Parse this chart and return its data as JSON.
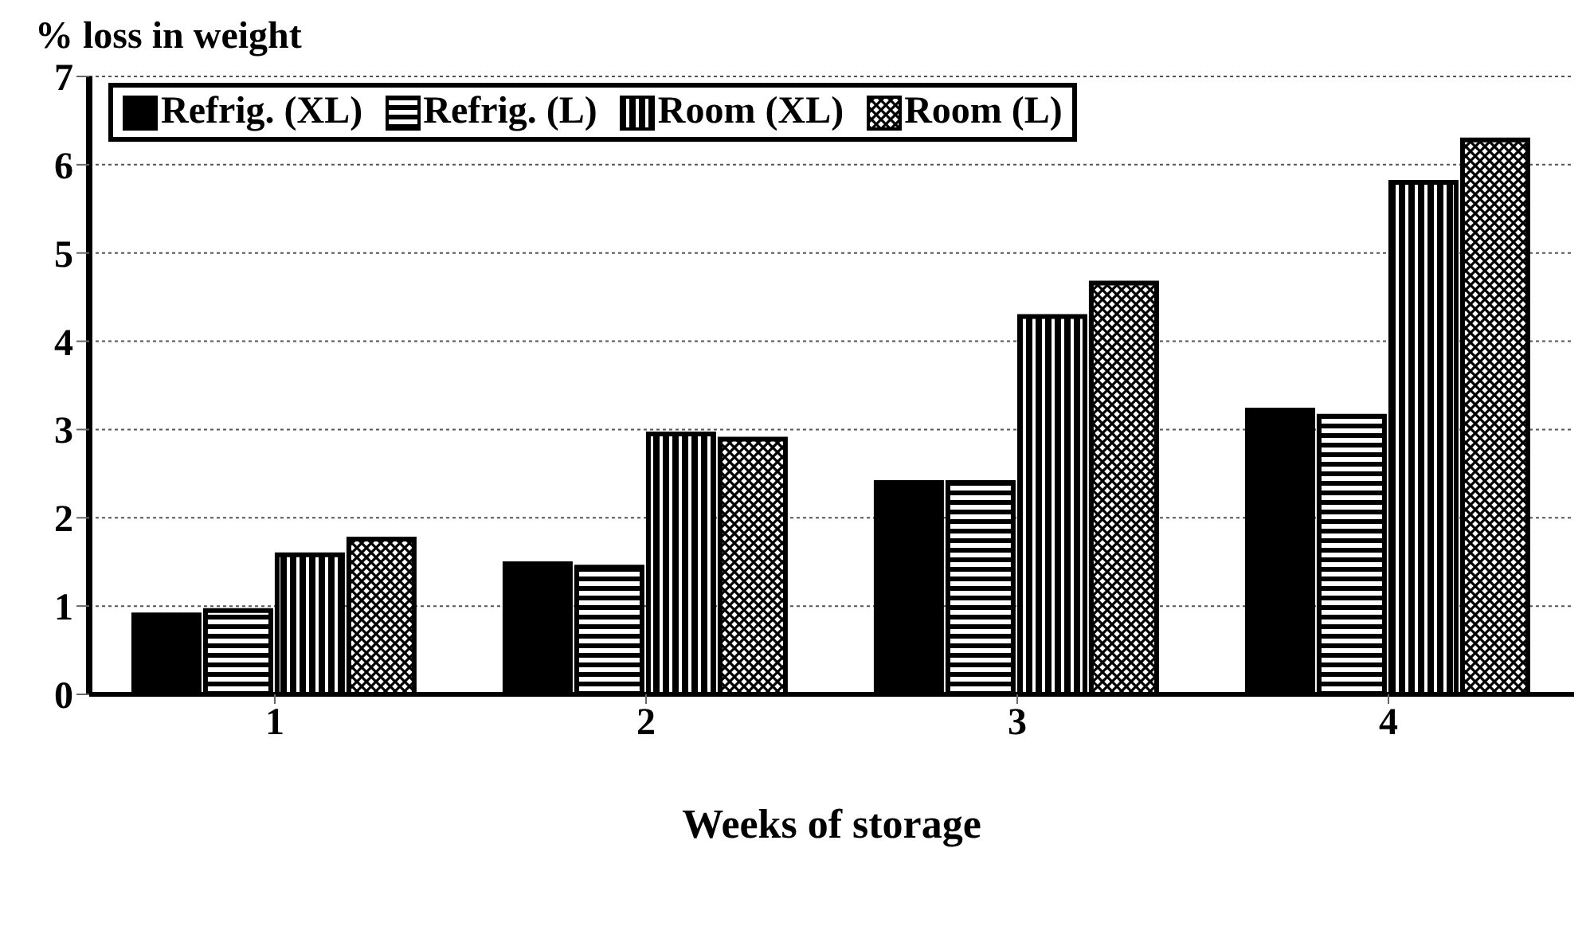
{
  "chart_data": {
    "type": "bar",
    "ylabel": "% loss in weight",
    "xlabel": "Weeks of storage",
    "categories": [
      "1",
      "2",
      "3",
      "4"
    ],
    "series": [
      {
        "name": "Refrig. (XL)",
        "color": "#000000",
        "values": [
          0.9,
          1.48,
          2.4,
          3.22
        ]
      },
      {
        "name": "Refrig. (L)",
        "color": "#000000",
        "values": [
          0.95,
          1.44,
          2.4,
          3.15
        ]
      },
      {
        "name": "Room (XL)",
        "color": "#000000",
        "values": [
          1.58,
          2.95,
          4.28,
          5.8
        ]
      },
      {
        "name": "Room (L)",
        "color": "#000000",
        "values": [
          1.76,
          2.89,
          4.66,
          6.28
        ]
      }
    ],
    "ylim": [
      0,
      7
    ],
    "yticks": [
      0,
      1,
      2,
      3,
      4,
      5,
      6,
      7
    ],
    "grid": "y",
    "legend": "top left"
  }
}
